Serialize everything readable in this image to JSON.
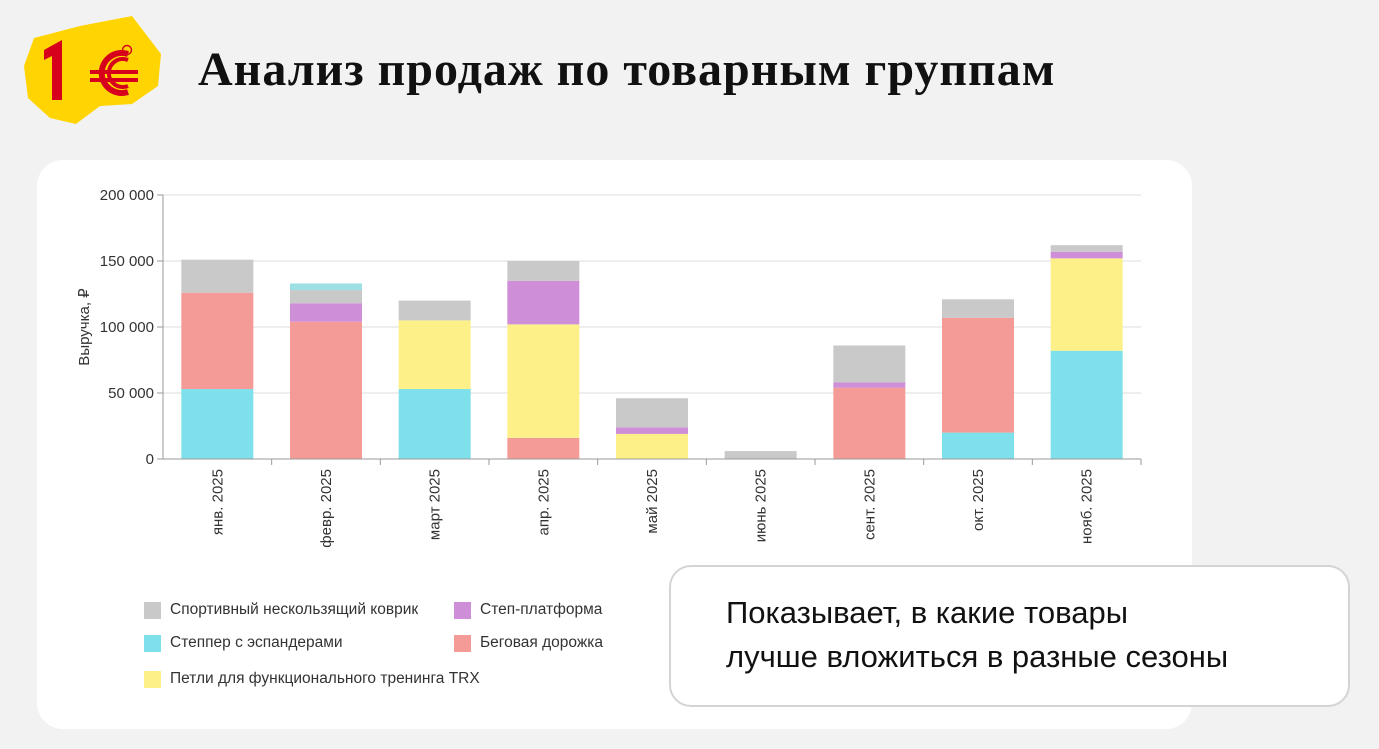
{
  "header": {
    "title": "Анализ продаж по товарным группам"
  },
  "logo": {
    "text": "1С"
  },
  "chart_data": {
    "type": "bar",
    "stacked": true,
    "categories": [
      "янв. 2025",
      "февр. 2025",
      "март 2025",
      "апр. 2025",
      "май 2025",
      "июнь 2025",
      "сент. 2025",
      "окт. 2025",
      "нояб. 2025"
    ],
    "ylabel": "Выручка, ₽",
    "ylim": [
      0,
      200000
    ],
    "yticks": [
      0,
      50000,
      100000,
      150000,
      200000
    ],
    "ytick_labels": [
      "0",
      "50 000",
      "100 000",
      "150 000",
      "200 000"
    ],
    "grid": true,
    "legend_position": "bottom",
    "series": [
      {
        "name": "Степпер  с эспандерами",
        "color": "#7ee0ea",
        "values": [
          53000,
          0,
          53000,
          0,
          0,
          0,
          0,
          20000,
          82000
        ]
      },
      {
        "name": "Беговая дорожка",
        "color": "#f59b97",
        "values": [
          73000,
          104000,
          0,
          16000,
          0,
          0,
          54000,
          87000,
          0
        ]
      },
      {
        "name": "Петли для функционального тренинга TRX",
        "color": "#fdf088",
        "values": [
          0,
          0,
          52000,
          86000,
          19000,
          0,
          0,
          0,
          70000
        ]
      },
      {
        "name": "Степ-платформа",
        "color": "#cf8fd8",
        "values": [
          0,
          14000,
          0,
          33000,
          5000,
          0,
          4000,
          0,
          5000
        ]
      },
      {
        "name": "Спортивный нескользящий коврик",
        "color": "#c9c9c9",
        "values": [
          25000,
          10000,
          15000,
          15000,
          22000,
          6000,
          28000,
          14000,
          5000
        ]
      },
      {
        "name": "",
        "color": "#9ce0e6",
        "values": [
          0,
          5000,
          0,
          0,
          0,
          0,
          0,
          0,
          0
        ]
      }
    ]
  },
  "legend": [
    {
      "label": "Спортивный нескользящий коврик",
      "color": "#c9c9c9"
    },
    {
      "label": "Степ-платформа",
      "color": "#cf8fd8"
    },
    {
      "label": "Степпер  с эспандерами",
      "color": "#7ee0ea"
    },
    {
      "label": "Беговая дорожка",
      "color": "#f59b97"
    },
    {
      "label": "Петли для функционального тренинга TRX",
      "color": "#fdf088"
    }
  ],
  "callout": {
    "line1": "Показывает, в какие товары",
    "line2": "лучше вложиться в разные сезоны"
  }
}
